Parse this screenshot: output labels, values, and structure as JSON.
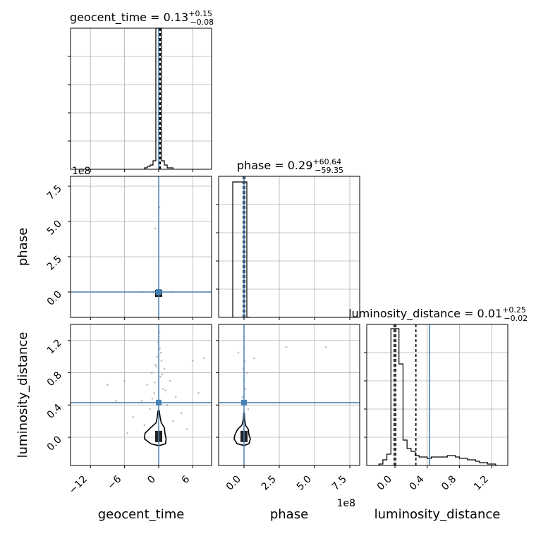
{
  "chart_data": {
    "type": "scatter",
    "kind": "corner-plot",
    "parameters": [
      "geocent_time",
      "phase",
      "luminosity_distance"
    ],
    "truth_color": "#4682b4",
    "truths": {
      "geocent_time": 0.0,
      "phase": 0.0,
      "luminosity_distance": 0.43
    },
    "titles": [
      {
        "param": "geocent_time",
        "prefix": "geocent_time = 0.13",
        "plus": "+0.15",
        "minus": "−0.08"
      },
      {
        "param": "phase",
        "prefix": "phase = 0.29",
        "plus": "+60.64",
        "minus": "−59.35"
      },
      {
        "param": "luminosity_distance",
        "prefix": "luminosity_distance = 0.01",
        "plus": "+0.25",
        "minus": "−0.02"
      }
    ],
    "axes": {
      "geocent_time": {
        "label": "geocent_time",
        "range": [
          -15.5,
          9.3
        ],
        "ticks": [
          -12,
          -6,
          0,
          6
        ],
        "tick_labels": [
          "−12",
          "−6",
          "0",
          "6"
        ]
      },
      "phase": {
        "label": "phase",
        "range": [
          -1.8,
          8.2
        ],
        "ticks": [
          0,
          2.5,
          5,
          7.5
        ],
        "tick_labels": [
          "0.0",
          "2.5",
          "5.0",
          "7.5"
        ],
        "offset_text": "1e8"
      },
      "luminosity_distance": {
        "label": "luminosity_distance",
        "range": [
          -0.35,
          1.4
        ],
        "ticks": [
          0,
          0.4,
          0.8,
          1.2
        ],
        "tick_labels": [
          "0.0",
          "0.4",
          "0.8",
          "1.2"
        ]
      }
    },
    "histograms": {
      "geocent_time": {
        "edges": [
          -2.5,
          -2.0,
          -1.5,
          -1.0,
          -0.5,
          0.0,
          0.5,
          1.0,
          1.5,
          2.5
        ],
        "counts": [
          0.01,
          0.02,
          0.03,
          0.06,
          1.0,
          1.0,
          0.06,
          0.03,
          0.01
        ],
        "quantiles": [
          0.05,
          0.13,
          0.28
        ]
      },
      "phase": {
        "edges": [
          -0.8,
          -0.2,
          0.2,
          0.4
        ],
        "counts": [
          0.96,
          0.96,
          0.0
        ],
        "quantiles": [
          -0.05,
          0.0,
          0.05
        ]
      },
      "luminosity_distance": {
        "edges": [
          -0.2,
          -0.15,
          -0.1,
          -0.05,
          0.0,
          0.05,
          0.1,
          0.15,
          0.2,
          0.25,
          0.3,
          0.35,
          0.4,
          0.45,
          0.5,
          0.55,
          0.6,
          0.65,
          0.7,
          0.75,
          0.8,
          0.85,
          0.9,
          0.95,
          1.0,
          1.05,
          1.1,
          1.15,
          1.2,
          1.25
        ],
        "counts": [
          0.01,
          0.04,
          0.08,
          0.97,
          0.97,
          0.72,
          0.18,
          0.12,
          0.1,
          0.07,
          0.06,
          0.06,
          0.05,
          0.06,
          0.06,
          0.06,
          0.06,
          0.07,
          0.07,
          0.06,
          0.05,
          0.05,
          0.04,
          0.04,
          0.03,
          0.02,
          0.02,
          0.01,
          0.01
        ],
        "quantiles": [
          -0.01,
          0.01,
          0.26
        ]
      }
    },
    "scatter": {
      "phase_vs_geocent_time": [
        [
          0.0,
          0.0
        ],
        [
          -0.5,
          0.0
        ],
        [
          0.4,
          0.0
        ],
        [
          -0.6,
          4.5
        ],
        [
          0.1,
          6.0
        ],
        [
          0.5,
          0.0
        ],
        [
          -1.0,
          0.0
        ],
        [
          2.5,
          0.0
        ],
        [
          -3.0,
          0.0
        ]
      ],
      "luminosity_distance_vs_geocent_time": [
        [
          0.0,
          1.25
        ],
        [
          0.2,
          1.1
        ],
        [
          -0.3,
          1.0
        ],
        [
          0.5,
          0.95
        ],
        [
          -0.6,
          0.9
        ],
        [
          1.0,
          0.85
        ],
        [
          -1.2,
          0.8
        ],
        [
          0.3,
          0.75
        ],
        [
          2.0,
          0.7
        ],
        [
          -2.0,
          0.65
        ],
        [
          0.8,
          0.6
        ],
        [
          -0.8,
          0.55
        ],
        [
          3.0,
          0.5
        ],
        [
          -3.0,
          0.45
        ],
        [
          1.5,
          0.4
        ],
        [
          -1.5,
          0.35
        ],
        [
          4.0,
          0.3
        ],
        [
          -4.5,
          0.25
        ],
        [
          2.5,
          0.2
        ],
        [
          -2.5,
          0.15
        ],
        [
          5.0,
          0.1
        ],
        [
          -5.5,
          0.05
        ],
        [
          6.0,
          0.95
        ],
        [
          -6.0,
          0.7
        ],
        [
          7.0,
          0.55
        ],
        [
          -7.5,
          0.45
        ],
        [
          8.0,
          0.98
        ],
        [
          -9.0,
          0.65
        ],
        [
          0.1,
          1.3
        ],
        [
          -0.1,
          1.18
        ],
        [
          0.4,
          1.05
        ],
        [
          -0.4,
          0.88
        ],
        [
          0.6,
          0.78
        ],
        [
          -0.7,
          0.68
        ],
        [
          1.2,
          0.58
        ],
        [
          -1.1,
          0.48
        ]
      ],
      "luminosity_distance_vs_phase": [
        [
          0.0,
          1.25
        ],
        [
          0.0,
          1.1
        ],
        [
          0.05,
          0.95
        ],
        [
          -0.05,
          0.85
        ],
        [
          0.0,
          0.7
        ],
        [
          0.1,
          0.6
        ],
        [
          -0.1,
          0.5
        ],
        [
          0.0,
          0.4
        ],
        [
          0.3,
          0.35
        ],
        [
          3.0,
          1.12
        ],
        [
          5.8,
          1.12
        ],
        [
          0.7,
          0.98
        ],
        [
          -0.4,
          1.05
        ],
        [
          0.2,
          0.8
        ],
        [
          0.05,
          0.2
        ],
        [
          -0.05,
          0.1
        ]
      ]
    },
    "contours": {
      "luminosity_distance_vs_geocent_time": {
        "x_levels": [
          [
            -0.1,
            0.1
          ],
          [
            -0.25,
            0.25
          ],
          [
            -0.45,
            0.45
          ],
          [
            -1.4,
            1.0
          ],
          [
            -2.4,
            1.1
          ],
          [
            -2.5,
            1.3
          ],
          [
            -1.4,
            1.2
          ],
          [
            -0.3,
            0.3
          ]
        ],
        "y_levels": [
          0.33,
          0.25,
          0.18,
          0.12,
          0.05,
          -0.02,
          -0.08,
          -0.1
        ]
      },
      "luminosity_distance_vs_phase": {
        "x_levels": [
          [
            -0.02,
            0.02
          ],
          [
            -0.05,
            0.05
          ],
          [
            -0.15,
            0.1
          ],
          [
            -0.45,
            0.3
          ],
          [
            -0.65,
            0.35
          ],
          [
            -0.7,
            0.45
          ],
          [
            -0.5,
            0.35
          ],
          [
            -0.05,
            0.05
          ]
        ],
        "y_levels": [
          0.3,
          0.22,
          0.15,
          0.1,
          0.03,
          -0.02,
          -0.08,
          -0.1
        ]
      }
    },
    "grid": true
  }
}
